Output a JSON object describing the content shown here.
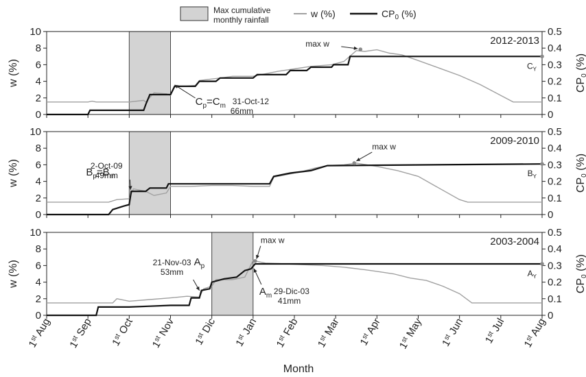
{
  "legend": {
    "rain_label_line1": "Max cumulative",
    "rain_label_line2": "monthly rainfall",
    "w_label": "w (%)",
    "cp_label": "CP",
    "cp_sub": "0",
    "cp_suffix": " (%)"
  },
  "xlabel": "Month",
  "month_ticks": [
    {
      "num": "1",
      "sup": "st",
      "name": " Aug"
    },
    {
      "num": "1",
      "sup": "st",
      "name": " Sep"
    },
    {
      "num": "1",
      "sup": "st",
      "name": " Oct"
    },
    {
      "num": "1",
      "sup": "st",
      "name": " Nov"
    },
    {
      "num": "1",
      "sup": "st",
      "name": " Dic"
    },
    {
      "num": "1",
      "sup": "st",
      "name": " Jan"
    },
    {
      "num": "1",
      "sup": "st",
      "name": " Feb"
    },
    {
      "num": "1",
      "sup": "st",
      "name": " Mar"
    },
    {
      "num": "1",
      "sup": "st",
      "name": " Apr"
    },
    {
      "num": "1",
      "sup": "st",
      "name": " May"
    },
    {
      "num": "1",
      "sup": "st",
      "name": " Jun"
    },
    {
      "num": "1",
      "sup": "st",
      "name": " Jul"
    },
    {
      "num": "1",
      "sup": "st",
      "name": " Aug"
    }
  ],
  "colors": {
    "w": "#a0a0a0",
    "cp": "#111111",
    "rain_fill": "#d3d3d3",
    "marker": "#8a8a8a"
  },
  "chart_data": [
    {
      "type": "line",
      "period": "2012-2013",
      "ylabel_left": "w (%)",
      "ylabel_right": "CP0 (%)",
      "ylim_left": [
        0,
        10
      ],
      "ylim_right": [
        0,
        0.5
      ],
      "yticks_left": [
        "0",
        "2",
        "4",
        "6",
        "8",
        "10"
      ],
      "yticks_right": [
        "0",
        "0.1",
        "0.2",
        "0.3",
        "0.4",
        "0.5"
      ],
      "x_units": "months since 1st Aug",
      "rain_band": [
        2.0,
        3.0
      ],
      "w": [
        [
          0,
          1.5
        ],
        [
          1.0,
          1.5
        ],
        [
          1.1,
          1.6
        ],
        [
          1.2,
          1.5
        ],
        [
          2.0,
          1.5
        ],
        [
          2.35,
          1.7
        ],
        [
          2.4,
          1.5
        ],
        [
          2.6,
          2.6
        ],
        [
          2.9,
          2.5
        ],
        [
          3.0,
          2.3
        ],
        [
          3.1,
          3.3
        ],
        [
          3.6,
          3.5
        ],
        [
          3.7,
          4.1
        ],
        [
          4.2,
          4.4
        ],
        [
          4.5,
          4.6
        ],
        [
          5.0,
          4.6
        ],
        [
          5.2,
          4.8
        ],
        [
          5.6,
          5.2
        ],
        [
          6.0,
          5.5
        ],
        [
          6.4,
          5.8
        ],
        [
          6.9,
          6.0
        ],
        [
          7.2,
          6.4
        ],
        [
          7.5,
          7.7
        ],
        [
          7.7,
          7.6
        ],
        [
          8.0,
          7.8
        ],
        [
          8.3,
          7.4
        ],
        [
          8.6,
          7.2
        ],
        [
          9.0,
          6.5
        ],
        [
          9.5,
          5.6
        ],
        [
          10.0,
          4.7
        ],
        [
          10.5,
          3.6
        ],
        [
          11.0,
          2.3
        ],
        [
          11.3,
          1.5
        ],
        [
          12.0,
          1.5
        ]
      ],
      "cp": [
        [
          0,
          0
        ],
        [
          1.0,
          0
        ],
        [
          1.05,
          0.025
        ],
        [
          2.35,
          0.025
        ],
        [
          2.4,
          0.06
        ],
        [
          2.5,
          0.12
        ],
        [
          3.0,
          0.12
        ],
        [
          3.1,
          0.17
        ],
        [
          3.6,
          0.17
        ],
        [
          3.7,
          0.2
        ],
        [
          4.1,
          0.2
        ],
        [
          4.2,
          0.22
        ],
        [
          5.0,
          0.22
        ],
        [
          5.1,
          0.24
        ],
        [
          5.8,
          0.24
        ],
        [
          5.9,
          0.265
        ],
        [
          6.3,
          0.265
        ],
        [
          6.4,
          0.285
        ],
        [
          6.9,
          0.285
        ],
        [
          6.95,
          0.3
        ],
        [
          7.3,
          0.3
        ],
        [
          7.35,
          0.35
        ],
        [
          12.0,
          0.35
        ]
      ],
      "max_w_point": [
        7.6,
        7.85
      ],
      "end_point_label": "C",
      "end_point_sub": "Y",
      "event": {
        "label": "C",
        "sub1": "p",
        "mid": "=C",
        "sub2": "m",
        "date": "31-Oct-12",
        "rain": "66mm"
      },
      "max_label": "max w"
    },
    {
      "type": "line",
      "period": "2009-2010",
      "ylabel_left": "w (%)",
      "ylabel_right": "CP0 (%)",
      "ylim_left": [
        0,
        10
      ],
      "ylim_right": [
        0,
        0.5
      ],
      "yticks_left": [
        "0",
        "2",
        "4",
        "6",
        "8",
        "10"
      ],
      "yticks_right": [
        "0",
        "0.1",
        "0.2",
        "0.3",
        "0.4",
        "0.5"
      ],
      "x_units": "months since 1st Aug",
      "rain_band": [
        2.0,
        3.0
      ],
      "w": [
        [
          0,
          1.5
        ],
        [
          1.5,
          1.5
        ],
        [
          1.7,
          1.8
        ],
        [
          2.0,
          1.9
        ],
        [
          2.1,
          3.1
        ],
        [
          2.4,
          2.8
        ],
        [
          2.6,
          2.3
        ],
        [
          2.9,
          2.6
        ],
        [
          3.0,
          3.4
        ],
        [
          3.5,
          3.4
        ],
        [
          4.0,
          3.5
        ],
        [
          4.5,
          3.5
        ],
        [
          5.0,
          3.4
        ],
        [
          5.4,
          3.4
        ],
        [
          5.5,
          4.5
        ],
        [
          5.8,
          4.8
        ],
        [
          6.2,
          5.2
        ],
        [
          6.5,
          5.6
        ],
        [
          6.8,
          5.9
        ],
        [
          7.2,
          6.0
        ],
        [
          7.5,
          6.2
        ],
        [
          8.0,
          5.8
        ],
        [
          8.5,
          5.3
        ],
        [
          9.0,
          4.6
        ],
        [
          9.5,
          3.2
        ],
        [
          10.0,
          1.8
        ],
        [
          10.2,
          1.5
        ],
        [
          12.0,
          1.5
        ]
      ],
      "cp": [
        [
          0,
          0
        ],
        [
          1.5,
          0
        ],
        [
          1.6,
          0.03
        ],
        [
          1.85,
          0.05
        ],
        [
          2.0,
          0.06
        ],
        [
          2.05,
          0.14
        ],
        [
          2.4,
          0.14
        ],
        [
          2.5,
          0.16
        ],
        [
          2.9,
          0.16
        ],
        [
          2.95,
          0.185
        ],
        [
          5.4,
          0.185
        ],
        [
          5.5,
          0.23
        ],
        [
          5.9,
          0.25
        ],
        [
          6.4,
          0.265
        ],
        [
          6.8,
          0.295
        ],
        [
          12.0,
          0.305
        ]
      ],
      "max_w_point": [
        7.45,
        6.2
      ],
      "end_point_label": "B",
      "end_point_sub": "Y",
      "event": {
        "label": "B",
        "sub1": "p",
        "mid": "=B",
        "sub2": "m",
        "date": "2-Oct-09",
        "rain": "49mm"
      },
      "max_label": "max w"
    },
    {
      "type": "line",
      "period": "2003-2004",
      "ylabel_left": "w (%)",
      "ylabel_right": "CP0 (%)",
      "ylim_left": [
        0,
        10
      ],
      "ylim_right": [
        0,
        0.5
      ],
      "yticks_left": [
        "0",
        "2",
        "4",
        "6",
        "8",
        "10"
      ],
      "yticks_right": [
        "0",
        "0.1",
        "0.2",
        "0.3",
        "0.4",
        "0.5"
      ],
      "x_units": "months since 1st Aug",
      "rain_band": [
        4.0,
        5.0
      ],
      "w": [
        [
          0,
          1.5
        ],
        [
          1.6,
          1.5
        ],
        [
          1.7,
          2.0
        ],
        [
          2.0,
          1.7
        ],
        [
          2.5,
          1.9
        ],
        [
          3.0,
          2.1
        ],
        [
          3.4,
          2.3
        ],
        [
          3.7,
          2.2
        ],
        [
          3.8,
          3.2
        ],
        [
          4.0,
          3.5
        ],
        [
          4.1,
          4.3
        ],
        [
          4.5,
          4.3
        ],
        [
          4.8,
          4.6
        ],
        [
          5.0,
          6.6
        ],
        [
          5.3,
          6.3
        ],
        [
          5.8,
          6.2
        ],
        [
          6.2,
          6.1
        ],
        [
          6.7,
          6.0
        ],
        [
          7.2,
          5.8
        ],
        [
          7.7,
          5.5
        ],
        [
          8.0,
          5.3
        ],
        [
          8.4,
          5.0
        ],
        [
          8.8,
          4.5
        ],
        [
          9.2,
          4.2
        ],
        [
          9.6,
          3.5
        ],
        [
          10.0,
          2.6
        ],
        [
          10.3,
          1.5
        ],
        [
          12.0,
          1.5
        ]
      ],
      "cp": [
        [
          0,
          0
        ],
        [
          1.2,
          0
        ],
        [
          1.25,
          0.05
        ],
        [
          2.0,
          0.05
        ],
        [
          2.5,
          0.055
        ],
        [
          3.0,
          0.06
        ],
        [
          3.45,
          0.06
        ],
        [
          3.5,
          0.105
        ],
        [
          3.7,
          0.105
        ],
        [
          3.75,
          0.15
        ],
        [
          3.95,
          0.16
        ],
        [
          4.0,
          0.2
        ],
        [
          4.3,
          0.22
        ],
        [
          4.6,
          0.23
        ],
        [
          4.8,
          0.27
        ],
        [
          4.95,
          0.28
        ],
        [
          5.05,
          0.31
        ],
        [
          12.0,
          0.31
        ]
      ],
      "max_w_point": [
        5.05,
        6.55
      ],
      "end_point_label": "A",
      "end_point_sub": "Y",
      "event_p": {
        "label": "A",
        "sub": "p",
        "date": "21-Nov-03",
        "rain": "53mm"
      },
      "event_m": {
        "label": "A",
        "sub": "m",
        "date": "29-Dic-03",
        "rain": "41mm"
      },
      "max_label": "max w"
    }
  ]
}
